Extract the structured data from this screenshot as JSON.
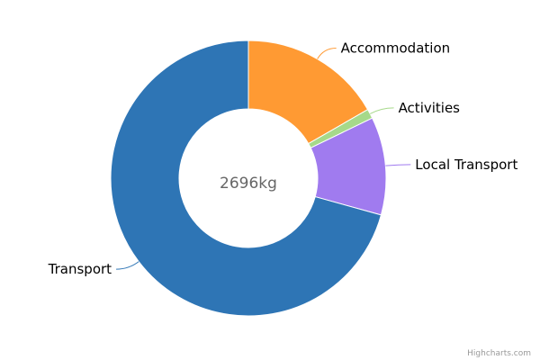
{
  "chart_data": {
    "type": "pie",
    "variant": "donut",
    "center_label": "2696kg",
    "slices": [
      {
        "name": "Accommodation",
        "value": 450,
        "color": "#ff9a33"
      },
      {
        "name": "Activities",
        "value": 30,
        "color": "#a6d98a"
      },
      {
        "name": "Local Transport",
        "value": 310,
        "color": "#a07bef"
      },
      {
        "name": "Transport",
        "value": 1906,
        "color": "#2e75b5"
      }
    ],
    "credits": "Highcharts.com"
  }
}
